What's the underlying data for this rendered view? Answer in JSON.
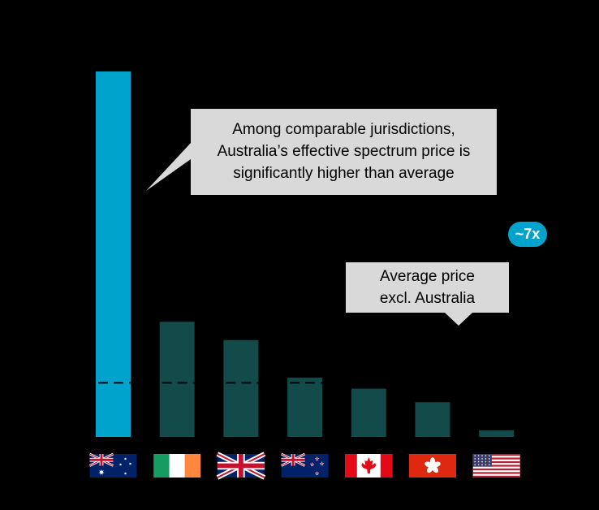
{
  "chart_data": {
    "type": "bar",
    "categories": [
      "Australia",
      "Ireland",
      "United Kingdom",
      "New Zealand",
      "Canada",
      "Hong Kong",
      "United States"
    ],
    "values": [
      100,
      31.5,
      26.5,
      16.2,
      13.2,
      9.5,
      1.8
    ],
    "average_excl_australia": 14.8,
    "ylim": [
      0,
      100
    ],
    "grid": false,
    "legend": "none",
    "colors": {
      "highlight": "#00A3CC",
      "others": "#134A4A",
      "average_line": "#000000",
      "callout_fill": "#D9D9D9",
      "badge": "#00A3CC"
    },
    "annotations": {
      "main_callout": [
        "Among  comparable jurisdictions,",
        "Australia’s effective spectrum price is",
        "significantly higher than average"
      ],
      "average_callout": [
        "Average price",
        "excl. Australia"
      ],
      "multiple_badge": "~7x"
    },
    "flag_icons": [
      "australia-flag-icon",
      "ireland-flag-icon",
      "uk-flag-icon",
      "new-zealand-flag-icon",
      "canada-flag-icon",
      "hong-kong-flag-icon",
      "usa-flag-icon"
    ]
  }
}
